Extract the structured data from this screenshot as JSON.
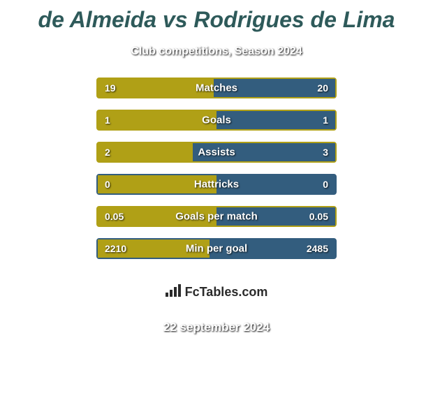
{
  "title": "de Almeida vs Rodrigues de Lima",
  "subtitle": "Club competitions, Season 2024",
  "date": "22 september 2024",
  "watermark": "FcTables.com",
  "colors": {
    "left_bar": "#b0a016",
    "right_bar": "#335d7e",
    "border_olive": "#b0a016",
    "border_blue": "#335d7e",
    "title_color": "#2e5a5a",
    "background": "#ffffff"
  },
  "ellipses": {
    "show_row_0": true,
    "show_row_1": true
  },
  "stats": [
    {
      "label": "Matches",
      "left_value": "19",
      "right_value": "20",
      "left_pct": 48.7,
      "border_color": "#b0a016"
    },
    {
      "label": "Goals",
      "left_value": "1",
      "right_value": "1",
      "left_pct": 50,
      "border_color": "#b0a016"
    },
    {
      "label": "Assists",
      "left_value": "2",
      "right_value": "3",
      "left_pct": 40,
      "border_color": "#b0a016"
    },
    {
      "label": "Hattricks",
      "left_value": "0",
      "right_value": "0",
      "left_pct": 50,
      "border_color": "#335d7e"
    },
    {
      "label": "Goals per match",
      "left_value": "0.05",
      "right_value": "0.05",
      "left_pct": 50,
      "border_color": "#b0a016"
    },
    {
      "label": "Min per goal",
      "left_value": "2210",
      "right_value": "2485",
      "left_pct": 47.1,
      "border_color": "#335d7e"
    }
  ]
}
